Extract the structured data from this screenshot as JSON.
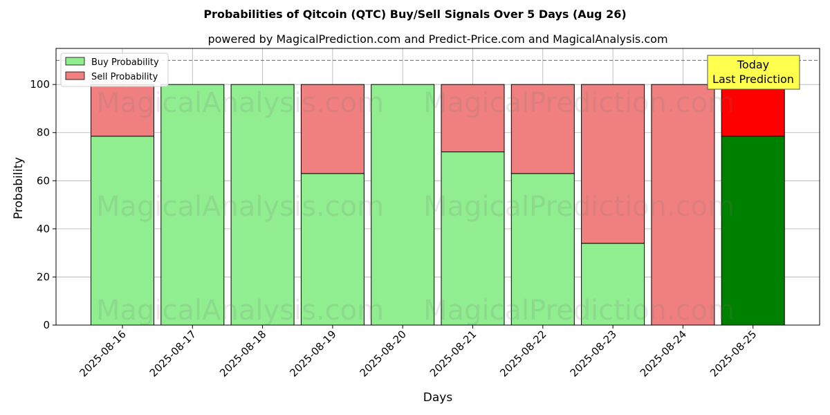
{
  "chart_data": {
    "type": "bar",
    "stacked": true,
    "title": "Probabilities of Qitcoin (QTC) Buy/Sell Signals Over 5 Days (Aug 26)",
    "subtitle": "powered by MagicalPrediction.com and Predict-Price.com and MagicalAnalysis.com",
    "xlabel": "Days",
    "ylabel": "Probability",
    "ylim": [
      0,
      115
    ],
    "yticks": [
      0,
      20,
      40,
      60,
      80,
      100
    ],
    "grid": true,
    "legend_position": "top-left",
    "categories": [
      "2025-08-16",
      "2025-08-17",
      "2025-08-18",
      "2025-08-19",
      "2025-08-20",
      "2025-08-21",
      "2025-08-22",
      "2025-08-23",
      "2025-08-24",
      "2025-08-25"
    ],
    "series": [
      {
        "name": "Buy Probability",
        "color": "#90ee90",
        "values": [
          78.5,
          100,
          100,
          63,
          100,
          72,
          63,
          34,
          0,
          78.5
        ]
      },
      {
        "name": "Sell Probability",
        "color": "#f08080",
        "values": [
          21.5,
          0,
          0,
          37,
          0,
          28,
          37,
          66,
          100,
          21.5
        ]
      }
    ],
    "highlight": {
      "index": 9,
      "buy_color": "#008000",
      "sell_color": "#ff0000"
    },
    "reference_line": {
      "value": 110,
      "style": "dashed"
    },
    "annotation": {
      "lines": [
        "Today",
        "Last Prediction"
      ],
      "background": "#ffff4d"
    },
    "watermarks": [
      "MagicalAnalysis.com",
      "MagicalPrediction.com"
    ]
  }
}
